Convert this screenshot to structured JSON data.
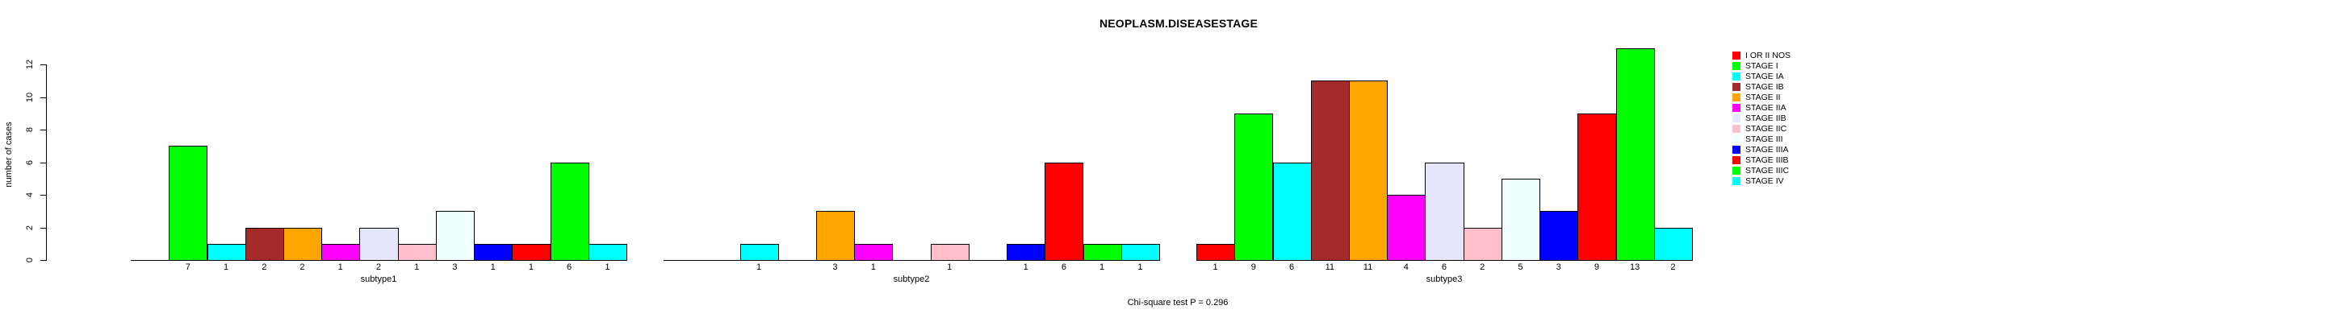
{
  "chart_data": {
    "type": "bar",
    "title": "NEOPLASM.DISEASESTAGE",
    "ylabel": "number of cases",
    "xlabel": "",
    "ylim": [
      0,
      12
    ],
    "y_ticks": [
      0,
      2,
      4,
      6,
      8,
      10,
      12
    ],
    "grid": false,
    "bar_value_labels_shown": true,
    "legend_position": "right",
    "annotation": "Chi-square test P = 0.296",
    "categories": [
      "subtype1",
      "subtype2",
      "subtype3"
    ],
    "series": [
      {
        "name": "I OR II NOS",
        "color": "#FF0000",
        "values": [
          0,
          0,
          1
        ]
      },
      {
        "name": "STAGE I",
        "color": "#00FF00",
        "values": [
          7,
          0,
          9
        ]
      },
      {
        "name": "STAGE IA",
        "color": "#00FFFF",
        "values": [
          1,
          1,
          6
        ]
      },
      {
        "name": "STAGE IB",
        "color": "#A52A2A",
        "values": [
          2,
          0,
          11
        ]
      },
      {
        "name": "STAGE II",
        "color": "#FFA500",
        "values": [
          2,
          3,
          11
        ]
      },
      {
        "name": "STAGE IIA",
        "color": "#FF00FF",
        "values": [
          1,
          1,
          4
        ]
      },
      {
        "name": "STAGE IIB",
        "color": "#E6E6FA",
        "values": [
          2,
          0,
          6
        ]
      },
      {
        "name": "STAGE IIC",
        "color": "#FFC0CB",
        "values": [
          1,
          1,
          2
        ]
      },
      {
        "name": "STAGE III",
        "color": "#F0FFFF",
        "values": [
          3,
          0,
          5
        ]
      },
      {
        "name": "STAGE IIIA",
        "color": "#0000FF",
        "values": [
          1,
          1,
          3
        ]
      },
      {
        "name": "STAGE IIIB",
        "color": "#FF0000",
        "values": [
          1,
          6,
          9
        ]
      },
      {
        "name": "STAGE IIIC",
        "color": "#00FF00",
        "values": [
          6,
          1,
          13
        ]
      },
      {
        "name": "STAGE IV",
        "color": "#00FFFF",
        "values": [
          1,
          1,
          2
        ]
      }
    ]
  }
}
